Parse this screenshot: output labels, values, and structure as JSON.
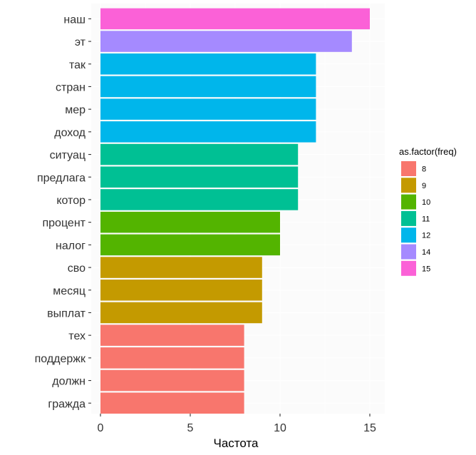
{
  "chart_data": {
    "type": "bar",
    "orientation": "horizontal",
    "categories": [
      "наш",
      "эт",
      "так",
      "стран",
      "мер",
      "доход",
      "ситуац",
      "предлага",
      "котор",
      "процент",
      "налог",
      "сво",
      "месяц",
      "выплат",
      "тех",
      "поддержк",
      "должн",
      "гражда"
    ],
    "values": [
      15,
      14,
      12,
      12,
      12,
      12,
      11,
      11,
      11,
      10,
      10,
      9,
      9,
      9,
      8,
      8,
      8,
      8
    ],
    "xlabel": "Частота",
    "ylabel": "",
    "xlim": [
      0,
      15.75
    ],
    "xticks": [
      0,
      5,
      10,
      15
    ],
    "grid": true,
    "legend": {
      "title": "as.factor(freq)",
      "position": "right",
      "entries": [
        {
          "label": "8",
          "color": "#F8766D"
        },
        {
          "label": "9",
          "color": "#C49A00"
        },
        {
          "label": "10",
          "color": "#53B400"
        },
        {
          "label": "11",
          "color": "#00C094"
        },
        {
          "label": "12",
          "color": "#00B6EB"
        },
        {
          "label": "14",
          "color": "#A58AFF"
        },
        {
          "label": "15",
          "color": "#FB61D7"
        }
      ]
    }
  }
}
